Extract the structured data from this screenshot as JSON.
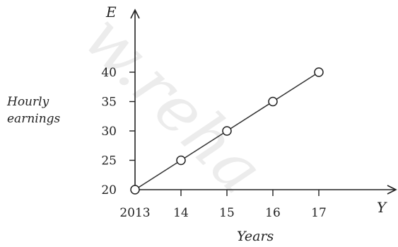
{
  "chart_data": {
    "type": "line",
    "x": [
      2013,
      2014,
      2015,
      2016,
      2017
    ],
    "x_tick_labels": [
      "2013",
      "14",
      "15",
      "16",
      "17"
    ],
    "values": [
      20,
      25,
      30,
      35,
      40
    ],
    "y_ticks": [
      20,
      25,
      30,
      35,
      40
    ],
    "xlim": [
      2013,
      2017
    ],
    "ylim": [
      20,
      40
    ],
    "x_axis_letter": "Y",
    "y_axis_letter": "E",
    "xlabel": "Years",
    "ylabel_line1": "Hourly",
    "ylabel_line2": "earnings",
    "marker": "open-circle",
    "grid": false,
    "colors": {
      "line": "#333333",
      "marker_fill": "#ffffff"
    },
    "watermark": "w.reha"
  }
}
